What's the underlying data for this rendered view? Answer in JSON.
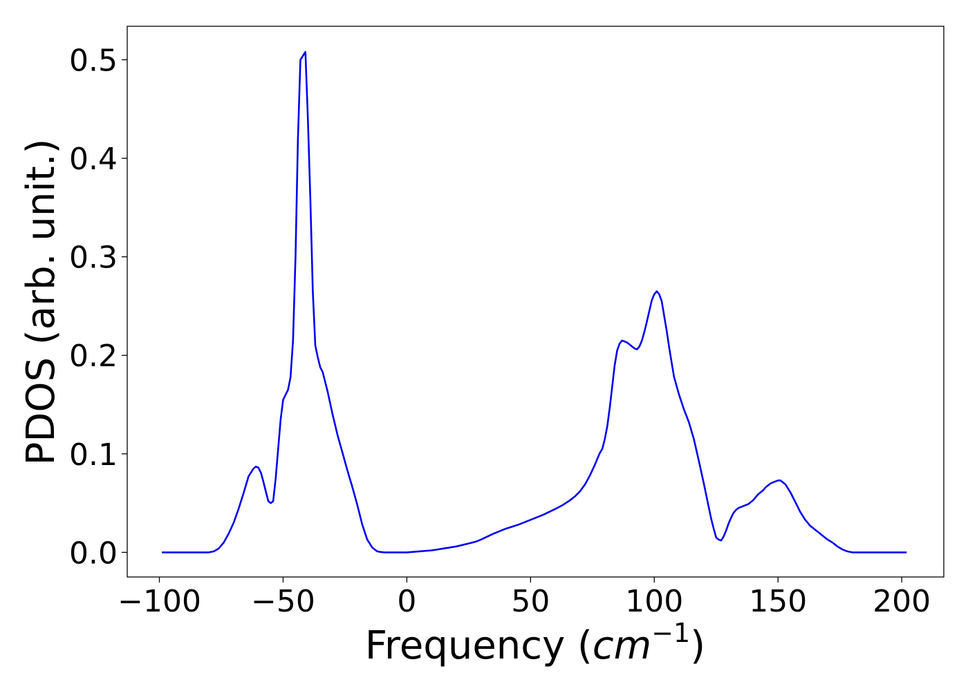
{
  "chart_data": {
    "type": "line",
    "title": "",
    "xlabel": "Frequency ($cm^{-1}$)",
    "xlabel_parts": {
      "prefix": "Frequency (",
      "var": "cm",
      "sup": "−1",
      "suffix": ")"
    },
    "ylabel": "PDOS (arb. unit.)",
    "xlim": [
      -113,
      217
    ],
    "ylim": [
      -0.025,
      0.534
    ],
    "grid": false,
    "legend": "none",
    "x_ticks": [
      -100,
      -50,
      0,
      50,
      100,
      150,
      200
    ],
    "x_tick_labels": [
      "−100",
      "−50",
      "0",
      "50",
      "100",
      "150",
      "200"
    ],
    "y_ticks": [
      0.0,
      0.1,
      0.2,
      0.3,
      0.4,
      0.5
    ],
    "y_tick_labels": [
      "0.0",
      "0.1",
      "0.2",
      "0.3",
      "0.4",
      "0.5"
    ],
    "colors": {
      "line": "#0000ee"
    },
    "series": [
      {
        "x": [
          -99,
          -90,
          -80,
          -78,
          -76,
          -74,
          -72,
          -70,
          -68,
          -66,
          -64,
          -62,
          -61,
          -60,
          -59,
          -58,
          -57,
          -56,
          -55,
          -54,
          -53,
          -52,
          -51,
          -50,
          -48,
          -47,
          -46,
          -45,
          -44,
          -43,
          -42,
          -41,
          -40,
          -39,
          -38,
          -37,
          -36,
          -35,
          -34,
          -32,
          -30,
          -28,
          -26,
          -24,
          -22,
          -20,
          -18,
          -16,
          -14,
          -13,
          -12,
          -11,
          -10,
          -9,
          -8,
          -6,
          -4,
          0,
          5,
          10,
          15,
          20,
          25,
          28,
          30,
          35,
          40,
          45,
          50,
          55,
          60,
          63,
          66,
          68,
          70,
          72,
          74,
          76,
          78,
          79,
          80,
          81,
          82,
          83,
          84,
          85,
          86,
          87,
          88,
          89,
          90,
          91,
          92,
          93,
          94,
          95,
          96,
          97,
          98,
          99,
          100,
          101,
          102,
          103,
          104,
          105,
          106,
          107,
          108,
          110,
          112,
          114,
          116,
          118,
          120,
          122,
          123,
          124,
          125,
          126,
          127,
          128,
          129,
          130,
          131,
          132,
          133,
          134,
          135,
          136,
          137,
          138,
          139,
          140,
          141,
          142,
          143,
          144,
          145,
          146,
          147,
          148,
          149,
          150,
          151,
          152,
          153,
          154,
          155,
          156,
          157,
          158,
          159,
          160,
          161,
          162,
          163,
          164,
          165,
          166,
          167,
          168,
          169,
          170,
          172,
          174,
          176,
          178,
          180,
          185,
          190,
          195,
          202
        ],
        "y": [
          0.0,
          0.0,
          0.0,
          0.001,
          0.004,
          0.01,
          0.019,
          0.03,
          0.044,
          0.06,
          0.077,
          0.085,
          0.087,
          0.086,
          0.081,
          0.072,
          0.062,
          0.052,
          0.05,
          0.052,
          0.075,
          0.105,
          0.135,
          0.155,
          0.165,
          0.178,
          0.215,
          0.3,
          0.42,
          0.5,
          0.504,
          0.508,
          0.44,
          0.36,
          0.265,
          0.21,
          0.198,
          0.188,
          0.183,
          0.163,
          0.14,
          0.119,
          0.101,
          0.083,
          0.066,
          0.048,
          0.028,
          0.013,
          0.005,
          0.003,
          0.001,
          0.0005,
          0.0002,
          0.0,
          0.0,
          0.0,
          0.0,
          0.0,
          0.001,
          0.002,
          0.004,
          0.006,
          0.009,
          0.011,
          0.013,
          0.019,
          0.024,
          0.028,
          0.033,
          0.038,
          0.044,
          0.048,
          0.053,
          0.057,
          0.062,
          0.069,
          0.078,
          0.089,
          0.101,
          0.105,
          0.115,
          0.128,
          0.147,
          0.168,
          0.19,
          0.205,
          0.212,
          0.215,
          0.214,
          0.213,
          0.211,
          0.209,
          0.207,
          0.206,
          0.209,
          0.215,
          0.224,
          0.234,
          0.245,
          0.256,
          0.262,
          0.265,
          0.262,
          0.255,
          0.24,
          0.225,
          0.208,
          0.193,
          0.178,
          0.16,
          0.145,
          0.132,
          0.115,
          0.093,
          0.07,
          0.046,
          0.034,
          0.024,
          0.015,
          0.013,
          0.012,
          0.016,
          0.022,
          0.029,
          0.035,
          0.04,
          0.043,
          0.045,
          0.046,
          0.047,
          0.048,
          0.049,
          0.051,
          0.053,
          0.056,
          0.059,
          0.061,
          0.063,
          0.066,
          0.068,
          0.07,
          0.071,
          0.072,
          0.073,
          0.073,
          0.071,
          0.069,
          0.065,
          0.061,
          0.056,
          0.051,
          0.046,
          0.041,
          0.037,
          0.033,
          0.03,
          0.027,
          0.025,
          0.023,
          0.021,
          0.019,
          0.017,
          0.015,
          0.013,
          0.01,
          0.006,
          0.003,
          0.001,
          0.0,
          0.0,
          0.0,
          0.0,
          0.0
        ]
      }
    ]
  }
}
